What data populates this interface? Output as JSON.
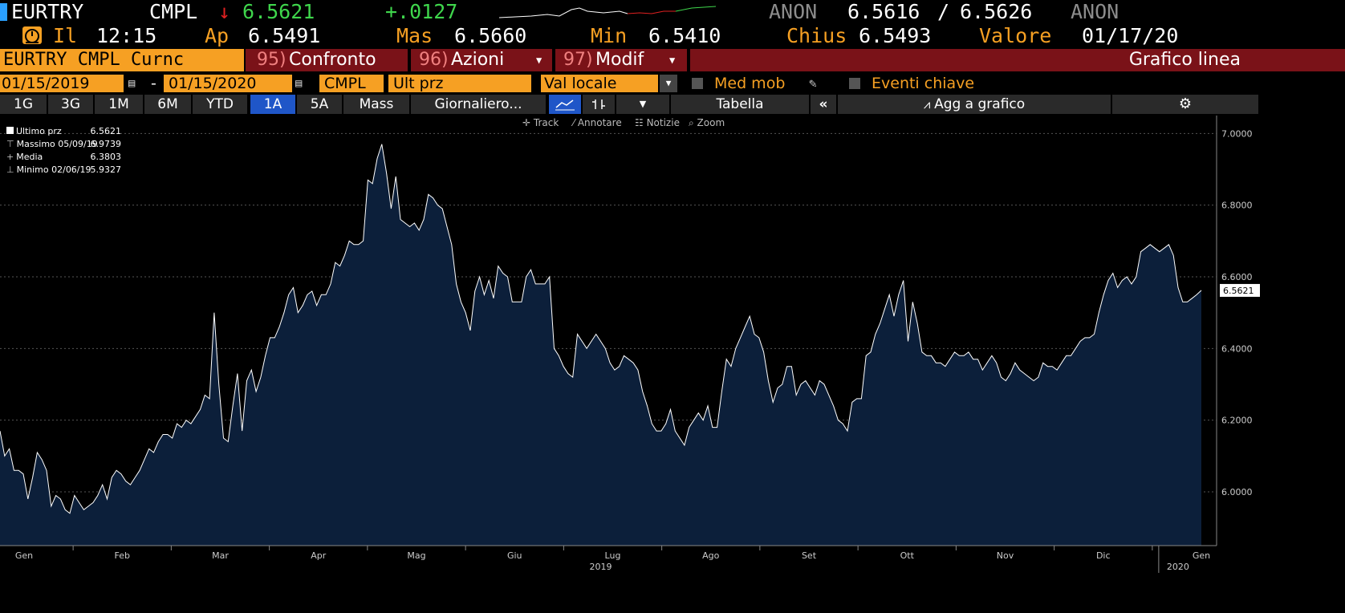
{
  "header": {
    "ticker": "EURTRY",
    "source": "CMPL",
    "arrow": "↓",
    "last": "6.5621",
    "change": "+.0127",
    "bid_source": "ANON",
    "bid": "6.5616",
    "separator": "/",
    "ask": "6.5626",
    "ask_source": "ANON"
  },
  "quote": {
    "time_label": "Il",
    "time": "12:15",
    "open_label": "Ap",
    "open": "6.5491",
    "high_label": "Mas",
    "high": "6.5660",
    "low_label": "Min",
    "low": "6.5410",
    "close_label": "Chius",
    "close": "6.5493",
    "value_label": "Valore",
    "value_date": "01/17/20"
  },
  "menu": {
    "security": "EURTRY CMPL Curnc",
    "items": [
      {
        "num": "95)",
        "label": "Confronto"
      },
      {
        "num": "96)",
        "label": "Azioni"
      },
      {
        "num": "97)",
        "label": "Modif"
      }
    ],
    "title": "Grafico linea"
  },
  "settings": {
    "start_date": "01/15/2019",
    "dash": "-",
    "end_date": "01/15/2020",
    "source": "CMPL",
    "field": "Ult prz",
    "currency": "Val locale",
    "moving_avg": "Med mob",
    "key_events": "Eventi chiave"
  },
  "tabs": {
    "periods": [
      "1G",
      "3G",
      "1M",
      "6M",
      "YTD",
      "1A",
      "5A",
      "Mass"
    ],
    "selected": "1A",
    "frequency": "Giornaliero...",
    "table": "Tabella",
    "add": "Agg a grafico"
  },
  "tools": [
    "Track",
    "Annotare",
    "Notizie",
    "Zoom"
  ],
  "legend": [
    {
      "label": "Ultimo prz",
      "value": "6.5621"
    },
    {
      "label": "Massimo 05/09/19",
      "value": "6.9739"
    },
    {
      "label": "Media",
      "value": "6.3803"
    },
    {
      "label": "Minimo 02/06/19",
      "value": "5.9327"
    }
  ],
  "chart_data": {
    "type": "area",
    "x_tick_labels": [
      "Gen",
      "Feb",
      "Mar",
      "Apr",
      "Mag",
      "Giu",
      "Lug",
      "Ago",
      "Set",
      "Ott",
      "Nov",
      "Dic",
      "Gen"
    ],
    "year_labels": [
      "2019",
      "2020"
    ],
    "y_ticks": [
      "6.0000",
      "6.2000",
      "6.4000",
      "6.6000",
      "6.8000",
      "7.0000"
    ],
    "ylim": [
      5.85,
      7.05
    ],
    "last_label": "6.5621",
    "series": [
      {
        "values": [
          6.17,
          6.1,
          6.12,
          6.06,
          6.06,
          6.05,
          5.98,
          6.04,
          6.11,
          6.09,
          6.06,
          5.96,
          5.99,
          5.98,
          5.95,
          5.94,
          5.99,
          5.97,
          5.95,
          5.96,
          5.97,
          5.99,
          6.02,
          5.98,
          6.04,
          6.06,
          6.05,
          6.03,
          6.02,
          6.04,
          6.06,
          6.09,
          6.12,
          6.11,
          6.14,
          6.16,
          6.16,
          6.15,
          6.19,
          6.18,
          6.2,
          6.19,
          6.21,
          6.23,
          6.27,
          6.26,
          6.5,
          6.3,
          6.15,
          6.14,
          6.24,
          6.33,
          6.17,
          6.31,
          6.34,
          6.28,
          6.32,
          6.38,
          6.43,
          6.43,
          6.46,
          6.5,
          6.55,
          6.57,
          6.5,
          6.52,
          6.55,
          6.56,
          6.52,
          6.55,
          6.55,
          6.58,
          6.64,
          6.63,
          6.66,
          6.7,
          6.69,
          6.69,
          6.7,
          6.87,
          6.86,
          6.93,
          6.97,
          6.89,
          6.79,
          6.88,
          6.76,
          6.75,
          6.74,
          6.75,
          6.73,
          6.76,
          6.83,
          6.82,
          6.8,
          6.79,
          6.74,
          6.69,
          6.58,
          6.53,
          6.5,
          6.45,
          6.56,
          6.6,
          6.55,
          6.59,
          6.54,
          6.63,
          6.61,
          6.6,
          6.53,
          6.53,
          6.53,
          6.6,
          6.62,
          6.58,
          6.58,
          6.58,
          6.6,
          6.4,
          6.38,
          6.35,
          6.33,
          6.32,
          6.44,
          6.42,
          6.4,
          6.42,
          6.44,
          6.42,
          6.4,
          6.36,
          6.34,
          6.35,
          6.38,
          6.37,
          6.36,
          6.34,
          6.28,
          6.24,
          6.19,
          6.17,
          6.17,
          6.19,
          6.23,
          6.17,
          6.15,
          6.13,
          6.18,
          6.2,
          6.22,
          6.2,
          6.24,
          6.18,
          6.18,
          6.28,
          6.37,
          6.35,
          6.4,
          6.43,
          6.46,
          6.49,
          6.44,
          6.43,
          6.39,
          6.31,
          6.25,
          6.29,
          6.3,
          6.35,
          6.35,
          6.27,
          6.3,
          6.31,
          6.29,
          6.27,
          6.31,
          6.3,
          6.27,
          6.24,
          6.2,
          6.19,
          6.17,
          6.25,
          6.26,
          6.26,
          6.38,
          6.39,
          6.44,
          6.47,
          6.51,
          6.55,
          6.49,
          6.55,
          6.59,
          6.42,
          6.53,
          6.47,
          6.39,
          6.38,
          6.38,
          6.36,
          6.36,
          6.35,
          6.37,
          6.39,
          6.38,
          6.38,
          6.39,
          6.37,
          6.37,
          6.34,
          6.36,
          6.38,
          6.36,
          6.32,
          6.31,
          6.33,
          6.36,
          6.34,
          6.33,
          6.32,
          6.31,
          6.32,
          6.36,
          6.35,
          6.35,
          6.34,
          6.36,
          6.38,
          6.38,
          6.4,
          6.42,
          6.43,
          6.43,
          6.44,
          6.5,
          6.55,
          6.59,
          6.61,
          6.57,
          6.59,
          6.6,
          6.58,
          6.6,
          6.67,
          6.68,
          6.69,
          6.68,
          6.67,
          6.68,
          6.69,
          6.66,
          6.57,
          6.53,
          6.53,
          6.54,
          6.55,
          6.5621
        ]
      }
    ]
  }
}
